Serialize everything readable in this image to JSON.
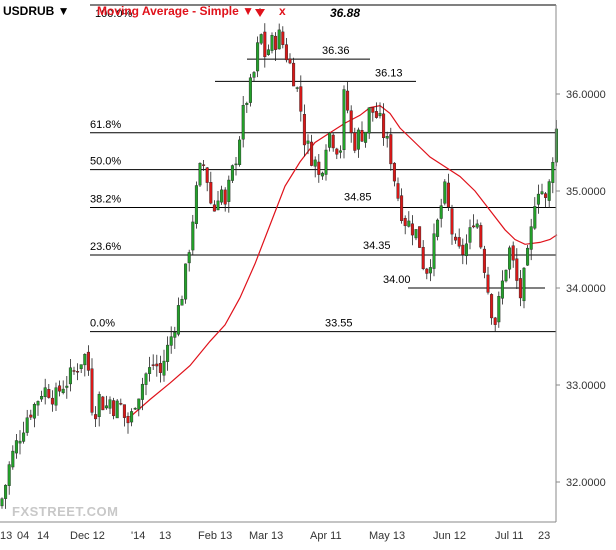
{
  "header": {
    "symbol": "USDRUB ▼",
    "indicator": "Moving Average - Simple ▼",
    "close_icon": "x",
    "peak_value": "36.88"
  },
  "watermark": "FXSTREET.COM",
  "colors": {
    "bull": "#23a12a",
    "bear": "#d81818",
    "moving_average": "#e0121b",
    "level_line": "#000000",
    "axis_text": "#333333"
  },
  "chart_data": {
    "type": "candlestick",
    "title": "",
    "instrument": "USDRUB",
    "y_axis": {
      "position": "right",
      "ticks": [
        32.0,
        33.0,
        34.0,
        35.0,
        36.0
      ],
      "tick_labels": [
        "32.0000",
        "33.0000",
        "34.0000",
        "35.0000",
        "36.0000"
      ],
      "ylim": [
        31.6,
        36.95
      ]
    },
    "x_axis": {
      "tick_labels": [
        "13",
        "04",
        "14",
        "Dec 12",
        "'14",
        "13",
        "Feb 13",
        "Mar 13",
        "Apr 11",
        "May 13",
        "Jun 12",
        "Jul 11",
        "23"
      ]
    },
    "fibonacci_levels": [
      {
        "label": "100.0%",
        "value": 36.88
      },
      {
        "label": "61.8%",
        "value": 35.6
      },
      {
        "label": "50.0%",
        "value": 35.22
      },
      {
        "label": "38.2%",
        "value": 34.83
      },
      {
        "label": "23.6%",
        "value": 34.34
      },
      {
        "label": "0.0%",
        "value": 33.55
      }
    ],
    "horizontal_levels": [
      {
        "label": "36.36",
        "value": 36.36
      },
      {
        "label": "36.13",
        "value": 36.13
      },
      {
        "label": "34.85",
        "value": 34.85
      },
      {
        "label": "34.35",
        "value": 34.35
      },
      {
        "label": "34.00",
        "value": 34.0
      },
      {
        "label": "33.55",
        "value": 33.55
      }
    ],
    "peak": {
      "label": "36.88",
      "value": 36.88
    },
    "price_path": [
      [
        0,
        31.75
      ],
      [
        5,
        31.95
      ],
      [
        10,
        32.2
      ],
      [
        15,
        32.35
      ],
      [
        22,
        32.55
      ],
      [
        28,
        32.7
      ],
      [
        35,
        32.8
      ],
      [
        42,
        32.95
      ],
      [
        50,
        32.95
      ],
      [
        55,
        32.85
      ],
      [
        62,
        33.0
      ],
      [
        68,
        33.05
      ],
      [
        75,
        33.15
      ],
      [
        80,
        33.25
      ],
      [
        85,
        33.3
      ],
      [
        88,
        33.2
      ],
      [
        92,
        32.8
      ],
      [
        96,
        32.75
      ],
      [
        100,
        32.9
      ],
      [
        105,
        32.75
      ],
      [
        110,
        32.85
      ],
      [
        115,
        32.75
      ],
      [
        120,
        32.8
      ],
      [
        125,
        32.65
      ],
      [
        130,
        32.6
      ],
      [
        135,
        32.85
      ],
      [
        140,
        32.95
      ],
      [
        145,
        33.1
      ],
      [
        150,
        33.15
      ],
      [
        155,
        33.25
      ],
      [
        160,
        33.1
      ],
      [
        165,
        33.3
      ],
      [
        170,
        33.45
      ],
      [
        175,
        33.65
      ],
      [
        180,
        33.85
      ],
      [
        185,
        34.1
      ],
      [
        190,
        34.5
      ],
      [
        195,
        34.9
      ],
      [
        200,
        35.2
      ],
      [
        205,
        35.3
      ],
      [
        210,
        34.9
      ],
      [
        215,
        34.8
      ],
      [
        220,
        35.1
      ],
      [
        225,
        34.8
      ],
      [
        230,
        35.1
      ],
      [
        235,
        35.3
      ],
      [
        240,
        35.6
      ],
      [
        245,
        35.9
      ],
      [
        250,
        36.05
      ],
      [
        255,
        36.25
      ],
      [
        260,
        36.65
      ],
      [
        265,
        36.4
      ],
      [
        270,
        36.5
      ],
      [
        275,
        36.55
      ],
      [
        280,
        36.6
      ],
      [
        285,
        36.45
      ],
      [
        290,
        36.3
      ],
      [
        295,
        36.15
      ],
      [
        300,
        35.9
      ],
      [
        305,
        35.5
      ],
      [
        310,
        35.4
      ],
      [
        315,
        35.3
      ],
      [
        320,
        35.1
      ],
      [
        325,
        35.5
      ],
      [
        330,
        35.6
      ],
      [
        335,
        35.5
      ],
      [
        340,
        35.4
      ],
      [
        345,
        36.1
      ],
      [
        350,
        35.6
      ],
      [
        355,
        35.5
      ],
      [
        360,
        35.6
      ],
      [
        365,
        35.6
      ],
      [
        370,
        35.85
      ],
      [
        375,
        35.8
      ],
      [
        380,
        35.7
      ],
      [
        385,
        35.55
      ],
      [
        390,
        35.4
      ],
      [
        395,
        35.1
      ],
      [
        400,
        34.85
      ],
      [
        405,
        34.7
      ],
      [
        410,
        34.65
      ],
      [
        415,
        34.6
      ],
      [
        420,
        34.45
      ],
      [
        425,
        34.15
      ],
      [
        430,
        34.3
      ],
      [
        435,
        34.5
      ],
      [
        440,
        34.8
      ],
      [
        445,
        35.0
      ],
      [
        450,
        34.7
      ],
      [
        455,
        34.4
      ],
      [
        460,
        34.35
      ],
      [
        465,
        34.4
      ],
      [
        470,
        34.55
      ],
      [
        475,
        34.8
      ],
      [
        480,
        34.5
      ],
      [
        485,
        34.2
      ],
      [
        490,
        33.85
      ],
      [
        495,
        33.65
      ],
      [
        500,
        33.9
      ],
      [
        505,
        34.2
      ],
      [
        510,
        34.4
      ],
      [
        515,
        34.15
      ],
      [
        520,
        33.9
      ],
      [
        525,
        34.15
      ],
      [
        530,
        34.45
      ],
      [
        535,
        34.95
      ],
      [
        540,
        35.1
      ],
      [
        545,
        34.85
      ],
      [
        550,
        35.1
      ],
      [
        555,
        35.6
      ],
      [
        560,
        35.7
      ]
    ],
    "moving_average": [
      [
        130,
        32.67
      ],
      [
        150,
        32.85
      ],
      [
        170,
        33.02
      ],
      [
        190,
        33.2
      ],
      [
        210,
        33.45
      ],
      [
        225,
        33.62
      ],
      [
        240,
        33.9
      ],
      [
        255,
        34.25
      ],
      [
        270,
        34.65
      ],
      [
        285,
        35.05
      ],
      [
        300,
        35.3
      ],
      [
        315,
        35.5
      ],
      [
        330,
        35.6
      ],
      [
        345,
        35.7
      ],
      [
        360,
        35.78
      ],
      [
        370,
        35.86
      ],
      [
        380,
        35.88
      ],
      [
        390,
        35.8
      ],
      [
        400,
        35.65
      ],
      [
        415,
        35.5
      ],
      [
        430,
        35.35
      ],
      [
        445,
        35.25
      ],
      [
        460,
        35.15
      ],
      [
        475,
        35.0
      ],
      [
        490,
        34.8
      ],
      [
        505,
        34.6
      ],
      [
        515,
        34.5
      ],
      [
        525,
        34.45
      ],
      [
        540,
        34.47
      ],
      [
        550,
        34.5
      ],
      [
        557,
        34.55
      ]
    ],
    "grid": false,
    "legend": "none"
  }
}
